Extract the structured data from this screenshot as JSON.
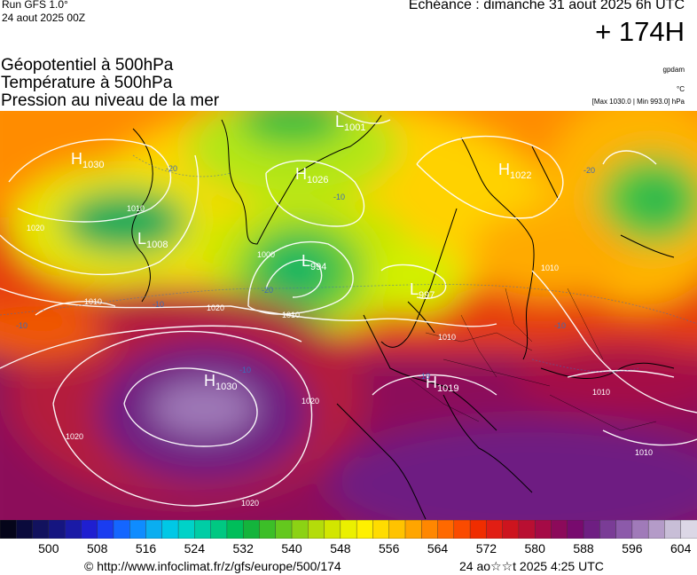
{
  "header": {
    "run": "Run GFS 1.0°",
    "run_date": "24 aout 2025 00Z",
    "echeance": "Echéance : dimanche 31 aout 2025 6h UTC",
    "lead": "+ 174H"
  },
  "legend": {
    "line1": "Géopotentiel à 500hPa",
    "line2": "Température à 500hPa",
    "line3": "Pression au niveau de la mer",
    "unit_geo": "gpdam",
    "unit_temp": "°C",
    "pressure_range": "[Max 1030.0 | Min 993.0] hPa"
  },
  "map": {
    "pressure_centers": [
      {
        "type": "H",
        "value": "1030",
        "label": "H-center-greenland-west"
      },
      {
        "type": "H",
        "value": "1026",
        "label": "H-center-iceland"
      },
      {
        "type": "H",
        "value": "1022",
        "label": "H-center-scandinavia-north"
      },
      {
        "type": "L",
        "value": "1001",
        "label": "L-center-arctic"
      },
      {
        "type": "L",
        "value": "1008",
        "label": "L-center-labrador"
      },
      {
        "type": "L",
        "value": "994",
        "label": "L-center-atlantic"
      },
      {
        "type": "L",
        "value": "997",
        "label": "L-center-north-sea"
      },
      {
        "type": "H",
        "value": "1030",
        "label": "H-center-azores"
      },
      {
        "type": "H",
        "value": "1019",
        "label": "H-center-alps"
      }
    ],
    "isobar_labels": [
      "1010",
      "1020",
      "1010",
      "1000",
      "1010",
      "1020",
      "1020",
      "1020",
      "1010",
      "1010",
      "1010",
      "1010",
      "1020"
    ],
    "temperature_labels": [
      "-10",
      "-20",
      "-20",
      "-10",
      "-10",
      "-10",
      "-10",
      "-20",
      "-10"
    ]
  },
  "scale": {
    "colors": [
      "#05051a",
      "#0a0a3c",
      "#12125e",
      "#151580",
      "#1a1aa6",
      "#1f1fd0",
      "#1a3cf0",
      "#1466ff",
      "#0f8cff",
      "#0aaef0",
      "#00c8e6",
      "#00d2c8",
      "#00cda5",
      "#00c882",
      "#00be5a",
      "#14b43c",
      "#3cbe28",
      "#64c81e",
      "#8cd214",
      "#b4dc0a",
      "#d2e600",
      "#ebf000",
      "#fff000",
      "#ffdc00",
      "#ffc300",
      "#ffa500",
      "#ff8700",
      "#ff6900",
      "#fa4b00",
      "#f02d00",
      "#e11e14",
      "#cd141e",
      "#b90f32",
      "#a50a46",
      "#8c0a5a",
      "#780a6e",
      "#6e1e82",
      "#7a3c96",
      "#8c5aaa",
      "#a07ab9",
      "#b49bc8",
      "#c8bed7",
      "#dcd7e6"
    ],
    "tick_labels": [
      "500",
      "508",
      "516",
      "524",
      "532",
      "540",
      "548",
      "556",
      "564",
      "572",
      "580",
      "588",
      "596",
      "604"
    ]
  },
  "footer": {
    "url": "© http://www.infoclimat.fr/z/gfs/europe/500/174",
    "timestamp": "24 ao☆☆t 2025  4:25 UTC"
  }
}
